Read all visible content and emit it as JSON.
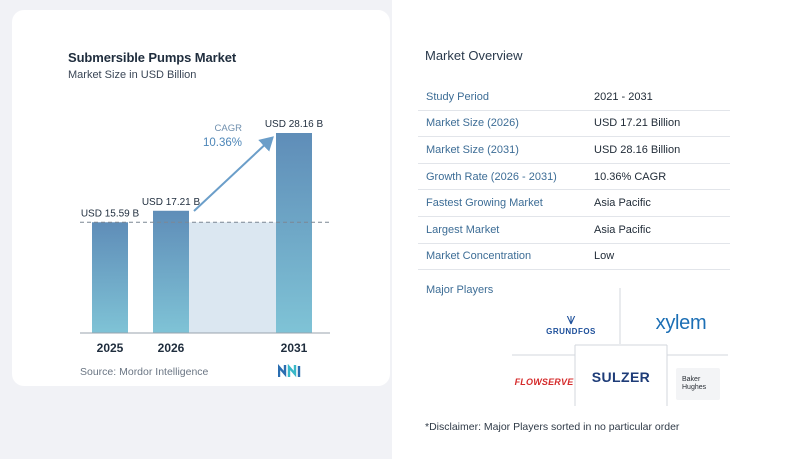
{
  "chart": {
    "title": "Submersible Pumps Market",
    "subtitle": "Market Size in USD Billion",
    "source": "Source: Mordor Intelligence",
    "cagr_label": "CAGR",
    "cagr_value": "10.36%"
  },
  "chart_data": {
    "type": "bar",
    "categories": [
      "2025",
      "2026",
      "2031"
    ],
    "values": [
      15.59,
      17.21,
      28.16
    ],
    "data_labels": [
      "USD 15.59 B",
      "USD 17.21 B",
      "USD 28.16 B"
    ],
    "title": "Submersible Pumps Market",
    "subtitle": "Market Size in USD Billion",
    "xlabel": "",
    "ylabel": "",
    "ylim": [
      0,
      28.16
    ],
    "grid": false,
    "legend": "none",
    "annotation": {
      "label": "CAGR",
      "value": "10.36%",
      "from": "2026",
      "to": "2031"
    },
    "colors": {
      "bar_top": "#5f8db8",
      "bar_bottom": "#7fc3d6",
      "band": "#dbe7f1",
      "arrow": "#6b9ec9"
    }
  },
  "overview": {
    "title": "Market Overview",
    "rows": [
      {
        "label": "Study Period",
        "value": "2021 - 2031"
      },
      {
        "label": "Market Size (2026)",
        "value": "USD 17.21 Billion"
      },
      {
        "label": "Market Size (2031)",
        "value": "USD 28.16 Billion"
      },
      {
        "label": "Growth Rate (2026 - 2031)",
        "value": "10.36% CAGR"
      },
      {
        "label": "Fastest Growing Market",
        "value": "Asia Pacific"
      },
      {
        "label": "Largest Market",
        "value": "Asia Pacific"
      },
      {
        "label": "Market Concentration",
        "value": "Low"
      }
    ],
    "major_players_label": "Major Players",
    "players": {
      "grundfos": "GRUNDFOS",
      "xylem": "xylem",
      "flowserve": "FLOWSERVE",
      "sulzer": "SULZER",
      "baker_line1": "Baker",
      "baker_line2": "Hughes"
    },
    "disclaimer": "*Disclaimer: Major Players sorted in no particular order"
  },
  "icons": {
    "brand": "mordor-intelligence-logo-icon",
    "grundfos_mark": "grundfos-mark-icon"
  }
}
